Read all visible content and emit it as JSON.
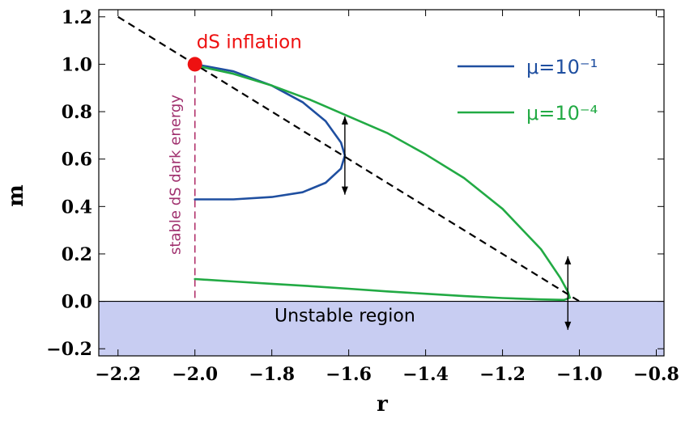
{
  "chart_data": {
    "type": "line",
    "title": "",
    "xlabel": "r",
    "ylabel": "m",
    "xlim": [
      -2.25,
      -0.78
    ],
    "ylim": [
      -0.23,
      1.23
    ],
    "x_ticks": [
      -2.2,
      -2.0,
      -1.8,
      -1.6,
      -1.4,
      -1.2,
      -1.0,
      -0.8
    ],
    "x_tick_labels": [
      "−2.2",
      "−2.0",
      "−1.8",
      "−1.6",
      "−1.4",
      "−1.2",
      "−1.0",
      "−0.8"
    ],
    "y_ticks": [
      -0.2,
      0.0,
      0.2,
      0.4,
      0.6,
      0.8,
      1.0,
      1.2
    ],
    "y_tick_labels": [
      "−0.2",
      "0.0",
      "0.2",
      "0.4",
      "0.6",
      "0.8",
      "1.0",
      "1.2"
    ],
    "grid": false,
    "legend_position": "top-right",
    "series": [
      {
        "name": "μ=10⁻¹",
        "color": "#1f4fa0",
        "points": [
          [
            -2.0,
            1.0
          ],
          [
            -1.9,
            0.97
          ],
          [
            -1.8,
            0.91
          ],
          [
            -1.72,
            0.84
          ],
          [
            -1.66,
            0.76
          ],
          [
            -1.62,
            0.67
          ],
          [
            -1.61,
            0.615
          ],
          [
            -1.62,
            0.56
          ],
          [
            -1.66,
            0.5
          ],
          [
            -1.72,
            0.46
          ],
          [
            -1.8,
            0.44
          ],
          [
            -1.9,
            0.43
          ],
          [
            -2.0,
            0.43
          ]
        ]
      },
      {
        "name": "μ=10⁻⁴",
        "color": "#22aa44",
        "points": [
          [
            -2.0,
            0.995
          ],
          [
            -1.9,
            0.96
          ],
          [
            -1.8,
            0.91
          ],
          [
            -1.7,
            0.85
          ],
          [
            -1.6,
            0.78
          ],
          [
            -1.5,
            0.71
          ],
          [
            -1.4,
            0.62
          ],
          [
            -1.3,
            0.52
          ],
          [
            -1.2,
            0.39
          ],
          [
            -1.1,
            0.22
          ],
          [
            -1.05,
            0.1
          ],
          [
            -1.03,
            0.04
          ],
          [
            -1.025,
            0.015
          ],
          [
            -1.04,
            0.006
          ],
          [
            -1.1,
            0.008
          ],
          [
            -1.2,
            0.014
          ],
          [
            -1.3,
            0.022
          ],
          [
            -1.4,
            0.032
          ],
          [
            -1.5,
            0.042
          ],
          [
            -1.6,
            0.053
          ],
          [
            -1.7,
            0.064
          ],
          [
            -1.8,
            0.074
          ],
          [
            -1.9,
            0.084
          ],
          [
            -2.0,
            0.094
          ]
        ]
      }
    ],
    "reference_lines": {
      "dashed_diagonal": {
        "points": [
          [
            -2.2,
            1.2
          ],
          [
            -1.0,
            0.0
          ]
        ],
        "color": "#000000"
      },
      "vertical_dashed": {
        "x": -2.0,
        "from": 0.0,
        "to": 1.0,
        "color": "#b0306a"
      }
    },
    "point_marker": {
      "x": -2.0,
      "y": 1.0,
      "color": "#ee1111"
    },
    "annotations": {
      "inflation": {
        "text": "dS inflation",
        "color": "#ee1111"
      },
      "dark_energy": {
        "text": "stable dS dark energy",
        "color": "#a0306e"
      },
      "unstable": {
        "text": "Unstable region",
        "fill": "#c8cdf2"
      }
    },
    "arrows": [
      {
        "x": -1.61,
        "y1": 0.45,
        "y2": 0.78
      },
      {
        "x": -1.03,
        "y1": 0.19,
        "y2": -0.12
      }
    ]
  }
}
